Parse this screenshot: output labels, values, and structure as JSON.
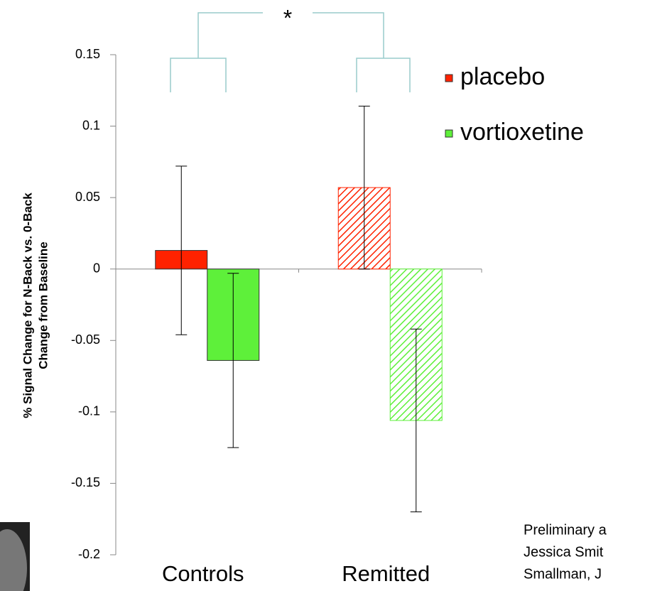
{
  "chart_data": {
    "type": "bar",
    "y_label": [
      "% Signal Change for N-Back vs. 0-Back",
      "Change from Baseline"
    ],
    "categories": [
      "Controls",
      "Remitted"
    ],
    "series": [
      {
        "name": "placebo",
        "color": "#ff2200",
        "values": [
          0.013,
          0.057
        ],
        "errors": [
          0.059,
          0.057
        ]
      },
      {
        "name": "vortioxetine",
        "color": "#5ef03a",
        "values": [
          -0.064,
          -0.106
        ],
        "errors": [
          0.061,
          0.064
        ]
      }
    ],
    "hatched": [
      false,
      true
    ],
    "ylim": [
      -0.2,
      0.15
    ],
    "yticks": [
      0.15,
      0.1,
      0.05,
      0,
      -0.05,
      -0.1,
      -0.15,
      -0.2
    ],
    "significance": "*",
    "note": [
      "Preliminary a",
      "Jessica Smit",
      "Smallman, J"
    ]
  }
}
